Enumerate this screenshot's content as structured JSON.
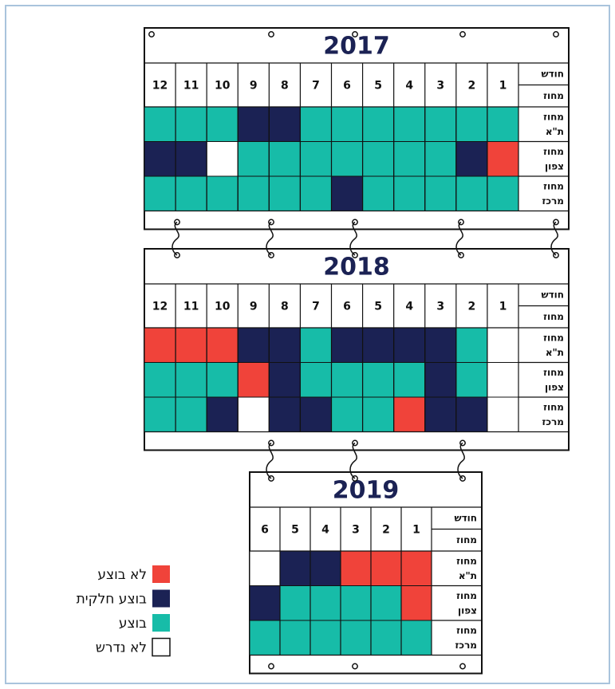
{
  "tables": [
    {
      "title": "2017",
      "header": [
        "חודש",
        "מחוז"
      ],
      "months": [
        12,
        11,
        10,
        9,
        8,
        7,
        6,
        5,
        4,
        3,
        2,
        1
      ],
      "rows": [
        {
          "label": [
            "מחוז",
            "ת\"א"
          ],
          "cells": [
            "#17bca8",
            "#17bca8",
            "#17bca8",
            "#1b2254",
            "#1b2254",
            "#17bca8",
            "#17bca8",
            "#17bca8",
            "#17bca8",
            "#17bca8",
            "#17bca8",
            "#17bca8"
          ]
        },
        {
          "label": [
            "מחוז",
            "צפון"
          ],
          "cells": [
            "#1b2254",
            "#1b2254",
            "#ffffff",
            "#17bca8",
            "#17bca8",
            "#17bca8",
            "#17bca8",
            "#17bca8",
            "#17bca8",
            "#17bca8",
            "#1b2254",
            "#f0433a"
          ]
        },
        {
          "label": [
            "מחוז",
            "מרכז"
          ],
          "cells": [
            "#17bca8",
            "#17bca8",
            "#17bca8",
            "#17bca8",
            "#17bca8",
            "#17bca8",
            "#1b2254",
            "#17bca8",
            "#17bca8",
            "#17bca8",
            "#17bca8",
            "#17bca8"
          ]
        }
      ]
    },
    {
      "title": "2018",
      "header": [
        "חודש",
        "מחוז"
      ],
      "months": [
        12,
        11,
        10,
        9,
        8,
        7,
        6,
        5,
        4,
        3,
        2,
        1
      ],
      "rows": [
        {
          "label": [
            "מחוז",
            "ת\"א"
          ],
          "cells": [
            "#f0433a",
            "#f0433a",
            "#f0433a",
            "#1b2254",
            "#1b2254",
            "#17bca8",
            "#1b2254",
            "#1b2254",
            "#1b2254",
            "#1b2254",
            "#17bca8",
            "#ffffff"
          ]
        },
        {
          "label": [
            "מחוז",
            "צפון"
          ],
          "cells": [
            "#17bca8",
            "#17bca8",
            "#17bca8",
            "#f0433a",
            "#1b2254",
            "#17bca8",
            "#17bca8",
            "#17bca8",
            "#17bca8",
            "#1b2254",
            "#17bca8",
            "#ffffff"
          ]
        },
        {
          "label": [
            "מחוז",
            "מרכז"
          ],
          "cells": [
            "#17bca8",
            "#17bca8",
            "#1b2254",
            "#ffffff",
            "#1b2254",
            "#1b2254",
            "#17bca8",
            "#17bca8",
            "#f0433a",
            "#1b2254",
            "#1b2254",
            "#ffffff"
          ]
        }
      ]
    },
    {
      "title": "2019",
      "header": [
        "חודש",
        "מחוז"
      ],
      "months": [
        6,
        5,
        4,
        3,
        2,
        1
      ],
      "rows": [
        {
          "label": [
            "מחוז",
            "ת\"א"
          ],
          "cells": [
            "#ffffff",
            "#1b2254",
            "#1b2254",
            "#f0433a",
            "#f0433a",
            "#f0433a"
          ]
        },
        {
          "label": [
            "מחוז",
            "צפון"
          ],
          "cells": [
            "#1b2254",
            "#17bca8",
            "#17bca8",
            "#17bca8",
            "#17bca8",
            "#f0433a"
          ]
        },
        {
          "label": [
            "מחוז",
            "מרכז"
          ],
          "cells": [
            "#17bca8",
            "#17bca8",
            "#17bca8",
            "#17bca8",
            "#17bca8",
            "#17bca8"
          ]
        }
      ]
    }
  ],
  "legend": [
    {
      "label": "לא בוצע",
      "color": "#f0433a"
    },
    {
      "label": "בוצע חלקית",
      "color": "#1b2254"
    },
    {
      "label": "בוצע",
      "color": "#17bca8"
    },
    {
      "label": "לא נדרש",
      "color": "#ffffff"
    }
  ]
}
